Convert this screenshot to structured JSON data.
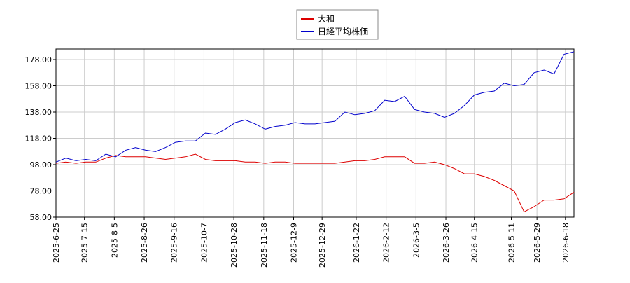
{
  "chart_data": {
    "type": "line",
    "x": [
      "2025-6-25",
      "2025-7-2",
      "2025-7-9",
      "2025-7-16",
      "2025-7-23",
      "2025-7-30",
      "2025-8-6",
      "2025-8-13",
      "2025-8-20",
      "2025-8-27",
      "2025-9-3",
      "2025-9-10",
      "2025-9-17",
      "2025-9-24",
      "2025-10-1",
      "2025-10-8",
      "2025-10-15",
      "2025-10-22",
      "2025-10-29",
      "2025-11-5",
      "2025-11-12",
      "2025-11-19",
      "2025-11-26",
      "2025-12-3",
      "2025-12-10",
      "2025-12-17",
      "2025-12-24",
      "2025-12-31",
      "2026-1-7",
      "2026-1-14",
      "2026-1-21",
      "2026-1-28",
      "2026-2-4",
      "2026-2-11",
      "2026-2-18",
      "2026-2-25",
      "2026-3-4",
      "2026-3-11",
      "2026-3-18",
      "2026-3-25",
      "2026-4-1",
      "2026-4-8",
      "2026-4-15",
      "2026-4-22",
      "2026-4-29",
      "2026-5-6",
      "2026-5-13",
      "2026-5-20",
      "2026-5-27",
      "2026-6-3",
      "2026-6-10",
      "2026-6-17",
      "2026-6-24"
    ],
    "series": [
      {
        "name": "大和",
        "color": "#dd0000",
        "values": [
          99,
          100,
          99,
          100,
          100,
          103,
          105,
          104,
          104,
          104,
          103,
          102,
          103,
          104,
          106,
          102,
          101,
          101,
          101,
          100,
          100,
          99,
          100,
          100,
          99,
          99,
          99,
          99,
          99,
          100,
          101,
          101,
          102,
          104,
          104,
          104,
          99,
          99,
          100,
          98,
          95,
          91,
          91,
          89,
          86,
          82,
          78,
          62,
          66,
          71,
          71,
          72,
          77
        ]
      },
      {
        "name": "日経平均株価",
        "color": "#0000cc",
        "values": [
          100,
          103,
          101,
          102,
          101,
          106,
          104,
          109,
          111,
          109,
          108,
          111,
          115,
          116,
          116,
          122,
          121,
          125,
          130,
          132,
          129,
          125,
          127,
          128,
          130,
          129,
          129,
          130,
          131,
          138,
          136,
          137,
          139,
          147,
          146,
          150,
          140,
          138,
          137,
          134,
          137,
          143,
          151,
          153,
          154,
          160,
          158,
          159,
          168,
          170,
          167,
          182,
          184
        ]
      }
    ],
    "xlim": [
      "2025-6-25",
      "2026-6-24"
    ],
    "xticks": [
      "2025-6-25",
      "2025-7-15",
      "2025-8-5",
      "2025-8-26",
      "2025-9-16",
      "2025-10-7",
      "2025-10-28",
      "2025-11-18",
      "2025-12-9",
      "2025-12-29",
      "2026-1-22",
      "2026-2-12",
      "2026-3-5",
      "2026-3-26",
      "2026-4-15",
      "2026-5-11",
      "2026-5-29",
      "2026-6-18"
    ],
    "ylim": [
      58,
      186
    ],
    "yticks": [
      {
        "value": 58,
        "label": "58.00"
      },
      {
        "value": 78,
        "label": "78.00"
      },
      {
        "value": 98,
        "label": "98.00"
      },
      {
        "value": 118,
        "label": "118.00"
      },
      {
        "value": 138,
        "label": "138.00"
      },
      {
        "value": 158,
        "label": "158.00"
      },
      {
        "value": 178,
        "label": "178.00"
      }
    ],
    "grid": true
  }
}
